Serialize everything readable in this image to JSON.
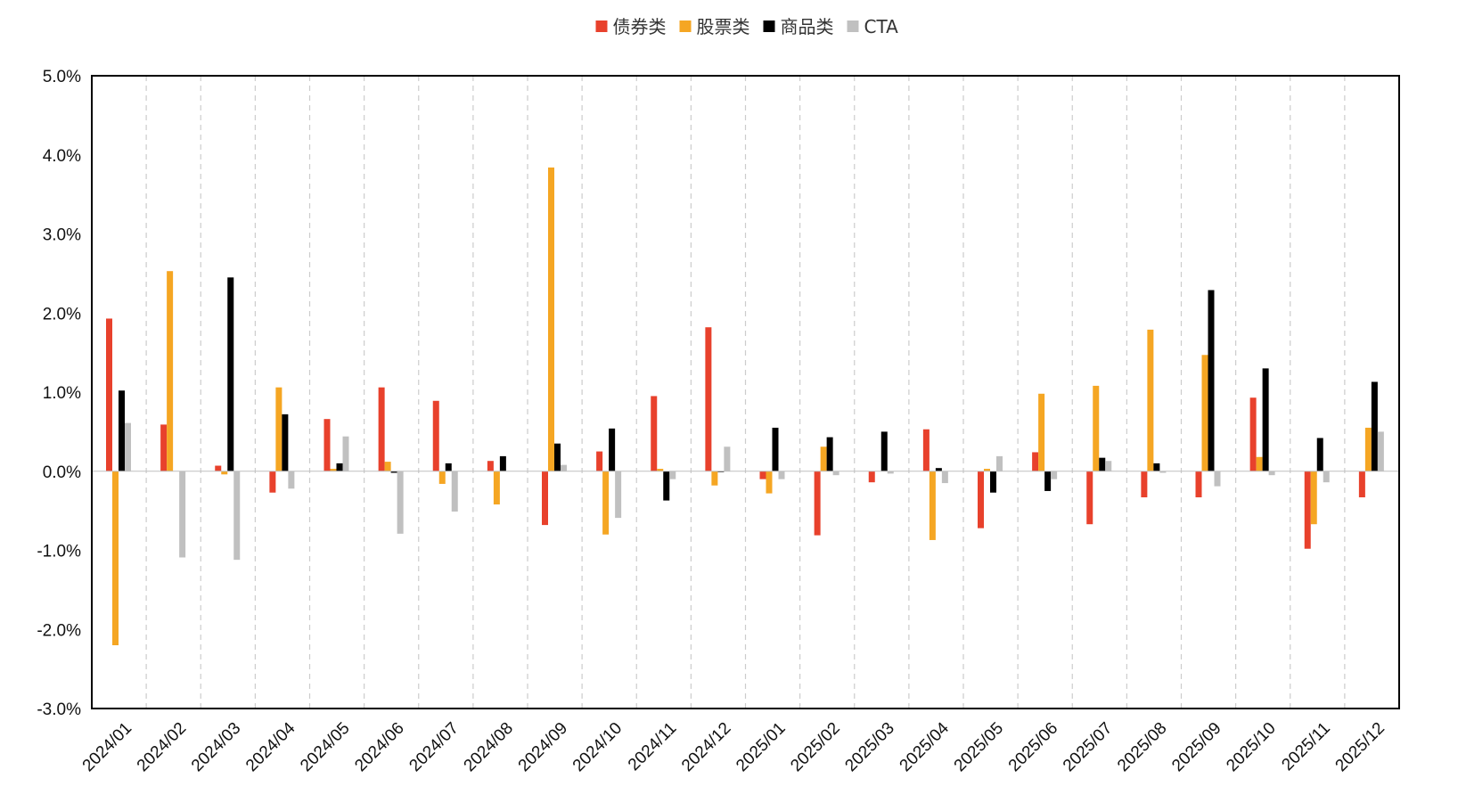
{
  "chart_data": {
    "type": "bar",
    "title": "",
    "xlabel": "",
    "ylabel": "",
    "ylim": [
      -3.0,
      5.0
    ],
    "yticks": [
      -3.0,
      -2.0,
      -1.0,
      0.0,
      1.0,
      2.0,
      3.0,
      4.0,
      5.0
    ],
    "ytick_labels": [
      "-3.0%",
      "-2.0%",
      "-1.0%",
      "0.0%",
      "1.0%",
      "2.0%",
      "3.0%",
      "4.0%",
      "5.0%"
    ],
    "legend_position": "top-center",
    "grid": "vertical dashed separators between categories",
    "categories": [
      "2024/01",
      "2024/02",
      "2024/03",
      "2024/04",
      "2024/05",
      "2024/06",
      "2024/07",
      "2024/08",
      "2024/09",
      "2024/10",
      "2024/11",
      "2024/12",
      "2025/01",
      "2025/02",
      "2025/03",
      "2025/04",
      "2025/05",
      "2025/06",
      "2025/07",
      "2025/08",
      "2025/09",
      "2025/10",
      "2025/11",
      "2025/12"
    ],
    "series": [
      {
        "name": "债券类",
        "color": "#E8412C",
        "values": [
          1.93,
          0.59,
          0.07,
          -0.27,
          0.66,
          1.06,
          0.89,
          0.13,
          -0.68,
          0.25,
          0.95,
          1.82,
          -0.1,
          -0.81,
          -0.14,
          0.53,
          -0.72,
          0.24,
          -0.67,
          -0.33,
          -0.33,
          0.93,
          -0.98,
          -0.33
        ]
      },
      {
        "name": "股票类",
        "color": "#F5A623",
        "values": [
          -2.2,
          2.53,
          -0.04,
          1.06,
          0.03,
          0.12,
          -0.16,
          -0.42,
          3.84,
          -0.8,
          0.03,
          -0.18,
          -0.28,
          0.31,
          0.0,
          -0.87,
          0.03,
          0.98,
          1.08,
          1.79,
          1.47,
          0.18,
          -0.67,
          0.55
        ]
      },
      {
        "name": "商品类",
        "color": "#000000",
        "values": [
          1.02,
          0.0,
          2.45,
          0.72,
          0.1,
          -0.02,
          0.1,
          0.19,
          0.35,
          0.54,
          -0.37,
          -0.01,
          0.55,
          0.43,
          0.5,
          0.04,
          -0.27,
          -0.25,
          0.17,
          0.1,
          2.29,
          1.3,
          0.42,
          1.13
        ]
      },
      {
        "name": "CTA",
        "color": "#C0C0C0",
        "values": [
          0.61,
          -1.09,
          -1.12,
          -0.22,
          0.44,
          -0.79,
          -0.51,
          0.0,
          0.08,
          -0.59,
          -0.1,
          0.31,
          -0.1,
          -0.05,
          -0.03,
          -0.15,
          0.19,
          -0.1,
          0.13,
          -0.02,
          -0.19,
          -0.05,
          -0.14,
          0.5
        ]
      }
    ]
  }
}
